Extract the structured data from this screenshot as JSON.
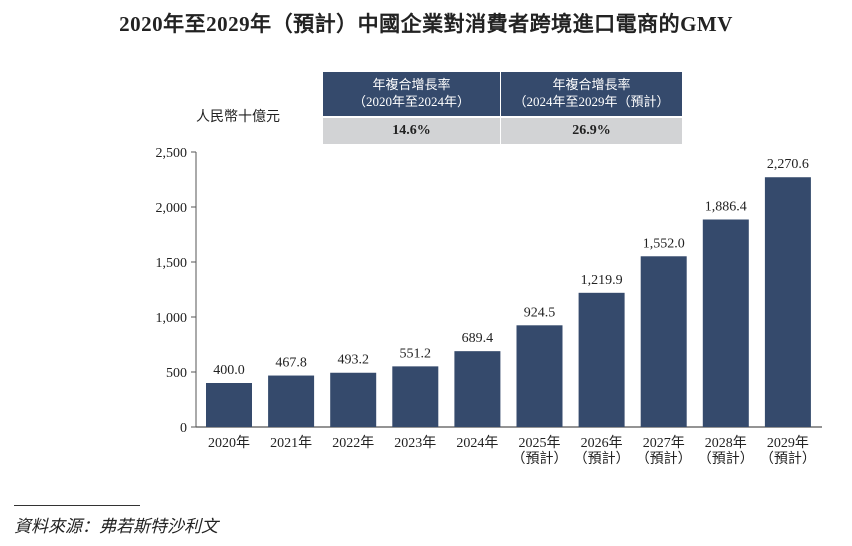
{
  "chart_data": {
    "type": "bar",
    "title": "2020年至2029年（預計）中國企業對消費者跨境進口電商的GMV",
    "ylabel": "人民幣十億元",
    "categories": [
      "2020年",
      "2021年",
      "2022年",
      "2023年",
      "2024年",
      "2025年\n（預計）",
      "2026年\n（預計）",
      "2027年\n（預計）",
      "2028年\n（預計）",
      "2029年\n（預計）"
    ],
    "values": [
      400.0,
      467.8,
      493.2,
      551.2,
      689.4,
      924.5,
      1219.9,
      1552.0,
      1886.4,
      2270.6
    ],
    "data_labels": [
      "400.0",
      "467.8",
      "493.2",
      "551.2",
      "689.4",
      "924.5",
      "1,219.9",
      "1,552.0",
      "1,886.4",
      "2,270.6"
    ],
    "ylim": [
      0,
      2500
    ],
    "yticks": [
      0,
      500,
      1000,
      1500,
      2000,
      2500
    ],
    "ytick_labels": [
      "0",
      "500",
      "1,000",
      "1,500",
      "2,000",
      "2,500"
    ],
    "grid": false,
    "bar_color": "#354a6c"
  },
  "cagr": [
    {
      "header": "年複合增長率",
      "period": "（2020年至2024年）",
      "value": "14.6%"
    },
    {
      "header": "年複合增長率",
      "period": "（2024年至2029年（預計）",
      "value": "26.9%"
    }
  ],
  "source": "資料來源：弗若斯特沙利文"
}
